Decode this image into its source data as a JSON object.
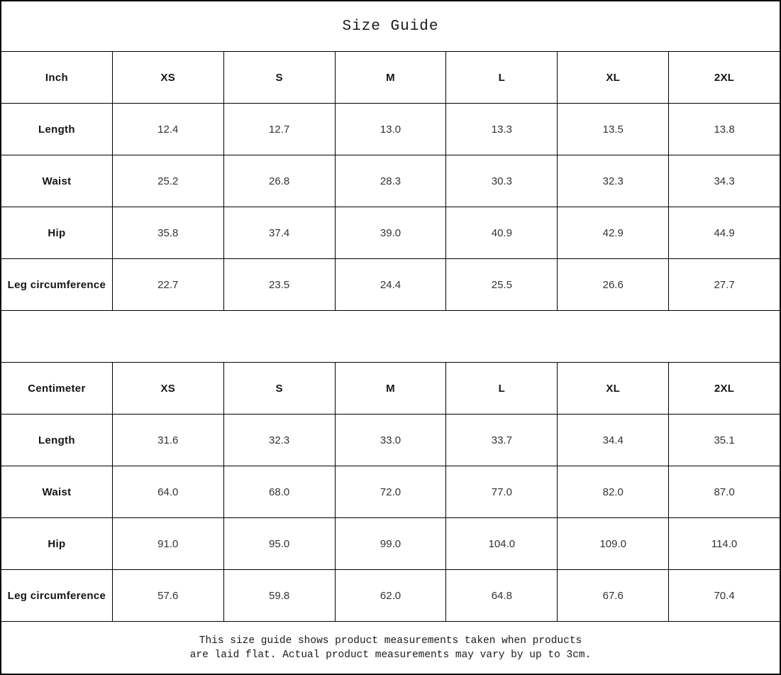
{
  "title": "Size Guide",
  "tables": [
    {
      "unit_label": "Inch",
      "columns": [
        "XS",
        "S",
        "M",
        "L",
        "XL",
        "2XL"
      ],
      "rows": [
        {
          "label": "Length",
          "values": [
            "12.4",
            "12.7",
            "13.0",
            "13.3",
            "13.5",
            "13.8"
          ]
        },
        {
          "label": "Waist",
          "values": [
            "25.2",
            "26.8",
            "28.3",
            "30.3",
            "32.3",
            "34.3"
          ]
        },
        {
          "label": "Hip",
          "values": [
            "35.8",
            "37.4",
            "39.0",
            "40.9",
            "42.9",
            "44.9"
          ]
        },
        {
          "label": "Leg circumference",
          "values": [
            "22.7",
            "23.5",
            "24.4",
            "25.5",
            "26.6",
            "27.7"
          ]
        }
      ]
    },
    {
      "unit_label": "Centimeter",
      "columns": [
        "XS",
        "S",
        "M",
        "L",
        "XL",
        "2XL"
      ],
      "rows": [
        {
          "label": "Length",
          "values": [
            "31.6",
            "32.3",
            "33.0",
            "33.7",
            "34.4",
            "35.1"
          ]
        },
        {
          "label": "Waist",
          "values": [
            "64.0",
            "68.0",
            "72.0",
            "77.0",
            "82.0",
            "87.0"
          ]
        },
        {
          "label": "Hip",
          "values": [
            "91.0",
            "95.0",
            "99.0",
            "104.0",
            "109.0",
            "114.0"
          ]
        },
        {
          "label": "Leg circumference",
          "values": [
            "57.6",
            "59.8",
            "62.0",
            "64.8",
            "67.6",
            "70.4"
          ]
        }
      ]
    }
  ],
  "footer": {
    "line1": "This size guide shows product measurements taken when products",
    "line2": "are laid flat. Actual product measurements may vary by up to 3cm."
  }
}
